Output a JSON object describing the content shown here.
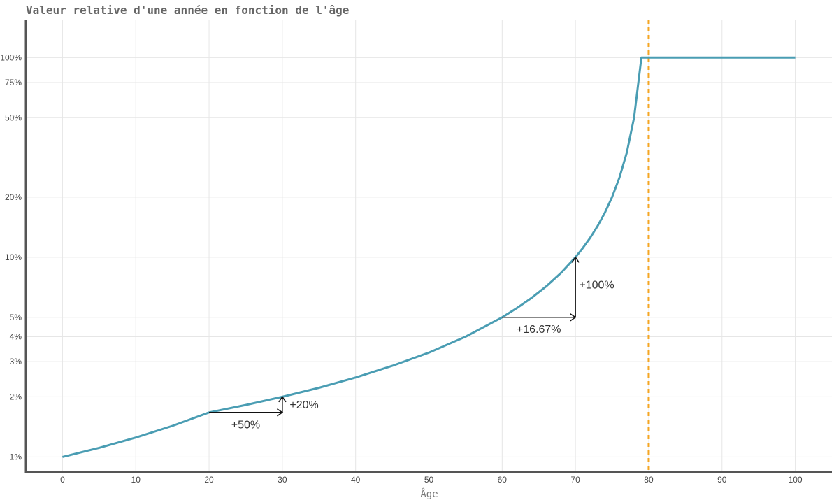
{
  "chart_data": {
    "type": "line",
    "title": "Valeur relative d'une année en fonction de l'âge",
    "xlabel": "Âge",
    "ylabel": "",
    "xlim": [
      -5,
      105
    ],
    "ylim": [
      0.0084,
      1.55
    ],
    "yscale": "log",
    "grid": true,
    "xticks": [
      0,
      10,
      20,
      30,
      40,
      50,
      60,
      70,
      80,
      90,
      100
    ],
    "xtick_labels": [
      "0",
      "10",
      "20",
      "30",
      "40",
      "50",
      "60",
      "70",
      "80",
      "90",
      "100"
    ],
    "yticks": [
      0.01,
      0.02,
      0.03,
      0.04,
      0.05,
      0.1,
      0.2,
      0.5,
      0.75,
      1.0
    ],
    "ytick_labels": [
      "1%",
      "2%",
      "3%",
      "4%",
      "5%",
      "10%",
      "20%",
      "50%",
      "75%",
      "100%"
    ],
    "series": [
      {
        "name": "",
        "color": "#4a9db3",
        "x": [
          0,
          5,
          10,
          15,
          20,
          25,
          30,
          35,
          40,
          45,
          50,
          55,
          60,
          62,
          64,
          66,
          68,
          70,
          71,
          72,
          73,
          74,
          75,
          76,
          77,
          78,
          79,
          80,
          85,
          90,
          95,
          100
        ],
        "y": [
          0.01,
          0.0111,
          0.0125,
          0.0143,
          0.0167,
          0.0182,
          0.02,
          0.0222,
          0.025,
          0.0286,
          0.0333,
          0.04,
          0.05,
          0.0556,
          0.0625,
          0.0714,
          0.0833,
          0.1,
          0.1111,
          0.125,
          0.1429,
          0.1667,
          0.2,
          0.25,
          0.3333,
          0.5,
          1.0,
          1.0,
          1.0,
          1.0,
          1.0,
          1.0
        ]
      }
    ],
    "reference_lines": [
      {
        "axis": "x",
        "value": 80,
        "color": "#f5a623",
        "style": "dashed"
      }
    ],
    "annotations": [
      {
        "type": "arrow",
        "from": [
          20,
          0.0167
        ],
        "to": [
          30,
          0.0167
        ]
      },
      {
        "type": "arrow",
        "from": [
          30,
          0.0167
        ],
        "to": [
          30,
          0.02
        ]
      },
      {
        "type": "arrow",
        "from": [
          60,
          0.05
        ],
        "to": [
          70,
          0.05
        ]
      },
      {
        "type": "arrow",
        "from": [
          70,
          0.05
        ],
        "to": [
          70,
          0.1
        ]
      }
    ],
    "labels": [
      {
        "text": "+50%",
        "x": 25,
        "y": 0.0145
      },
      {
        "text": "+20%",
        "x": 31,
        "y": 0.0182
      },
      {
        "text": "+16.67%",
        "x": 65,
        "y": 0.0435
      },
      {
        "text": "+100%",
        "x": 70.5,
        "y": 0.0725
      }
    ]
  }
}
